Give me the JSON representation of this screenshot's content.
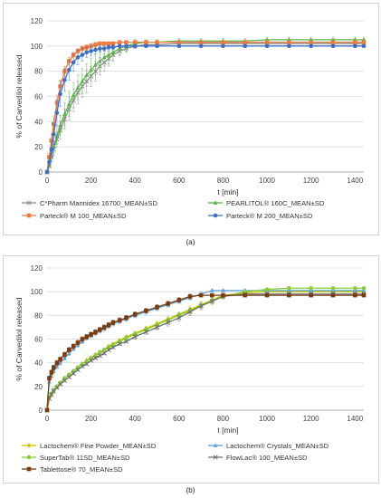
{
  "chart_data": [
    {
      "type": "line",
      "caption": "(a)",
      "title": "",
      "xlabel": "t [min]",
      "ylabel": "% of Carvedilol released",
      "xlim": [
        0,
        1440
      ],
      "ylim": [
        0,
        120
      ],
      "xticks": [
        0,
        200,
        400,
        600,
        800,
        1000,
        1200,
        1400
      ],
      "yticks": [
        0,
        20,
        40,
        60,
        80,
        100,
        120
      ],
      "grid": "horizontal",
      "legend": "bottom",
      "series": [
        {
          "name": "C*Pharm Mannidex 16700_MEAN±SD",
          "color": "#8c8c8c",
          "marker": "x",
          "x": [
            0,
            10,
            20,
            30,
            45,
            60,
            80,
            100,
            120,
            140,
            160,
            180,
            200,
            220,
            240,
            260,
            280,
            300,
            330,
            360,
            400,
            450,
            500,
            600,
            700,
            800,
            900,
            1000,
            1100,
            1200,
            1300,
            1400,
            1440
          ],
          "y": [
            0,
            5,
            12,
            18,
            26,
            33,
            42,
            50,
            57,
            63,
            68,
            72,
            76,
            80,
            84,
            87,
            90,
            93,
            96,
            98,
            100,
            101,
            101,
            102,
            102,
            102,
            102,
            102,
            102,
            102,
            102,
            102,
            102
          ],
          "err": [
            0,
            2,
            4,
            5,
            6,
            7,
            8,
            9,
            9,
            9,
            9,
            9,
            8,
            8,
            7,
            7,
            6,
            5,
            4,
            3,
            2,
            1,
            1,
            1,
            1,
            1,
            1,
            1,
            1,
            1,
            1,
            1,
            1
          ]
        },
        {
          "name": "PEARLITOL® 160C_MEAN±SD",
          "color": "#5ab04a",
          "marker": "triangle",
          "x": [
            0,
            10,
            20,
            30,
            45,
            60,
            80,
            100,
            120,
            140,
            160,
            180,
            200,
            220,
            240,
            260,
            280,
            300,
            330,
            360,
            400,
            450,
            500,
            600,
            700,
            800,
            900,
            1000,
            1100,
            1200,
            1300,
            1400,
            1440
          ],
          "y": [
            0,
            6,
            13,
            20,
            29,
            37,
            46,
            54,
            61,
            67,
            72,
            77,
            81,
            85,
            88,
            91,
            93,
            95,
            98,
            100,
            102,
            103,
            103,
            104,
            104,
            104,
            104,
            105,
            105,
            105,
            105,
            105,
            105
          ],
          "err": [
            0,
            2,
            4,
            5,
            7,
            8,
            9,
            10,
            10,
            10,
            10,
            9,
            9,
            8,
            8,
            7,
            7,
            6,
            5,
            4,
            3,
            2,
            2,
            2,
            2,
            2,
            2,
            2,
            2,
            2,
            2,
            2,
            2
          ]
        },
        {
          "name": "Parteck® M 100_MEAN±SD",
          "color": "#f07b3f",
          "marker": "square",
          "x": [
            0,
            10,
            20,
            30,
            45,
            60,
            80,
            100,
            120,
            140,
            160,
            180,
            200,
            220,
            240,
            260,
            280,
            300,
            330,
            360,
            400,
            450,
            500,
            600,
            700,
            800,
            900,
            1000,
            1100,
            1200,
            1300,
            1400,
            1440
          ],
          "y": [
            0,
            12,
            25,
            38,
            55,
            68,
            80,
            88,
            93,
            96,
            98,
            99,
            100,
            101,
            102,
            102,
            102,
            102,
            103,
            103,
            103,
            103,
            103,
            103,
            103,
            103,
            103,
            103,
            103,
            103,
            103,
            103,
            103
          ],
          "err": [
            0,
            3,
            5,
            6,
            6,
            5,
            4,
            3,
            2,
            2,
            2,
            2,
            2,
            2,
            1,
            1,
            1,
            1,
            1,
            1,
            1,
            1,
            1,
            1,
            1,
            1,
            1,
            1,
            1,
            1,
            1,
            1,
            1
          ]
        },
        {
          "name": "Parteck® M 200_MEAN±SD",
          "color": "#3f6fc4",
          "marker": "circle",
          "x": [
            0,
            10,
            20,
            30,
            45,
            60,
            80,
            100,
            120,
            140,
            160,
            180,
            200,
            220,
            240,
            260,
            280,
            300,
            330,
            360,
            400,
            450,
            500,
            600,
            700,
            800,
            900,
            1000,
            1100,
            1200,
            1300,
            1400,
            1440
          ],
          "y": [
            0,
            8,
            18,
            30,
            47,
            62,
            73,
            81,
            87,
            91,
            93,
            95,
            96,
            97,
            98,
            98,
            99,
            99,
            100,
            100,
            100,
            100,
            100,
            100,
            100,
            100,
            100,
            100,
            100,
            100,
            100,
            100,
            100
          ],
          "err": [
            0,
            3,
            6,
            8,
            10,
            10,
            9,
            8,
            7,
            6,
            5,
            4,
            4,
            3,
            3,
            2,
            2,
            2,
            1,
            1,
            1,
            1,
            1,
            1,
            1,
            1,
            1,
            1,
            1,
            1,
            1,
            1,
            1
          ]
        }
      ]
    },
    {
      "type": "line",
      "caption": "(b)",
      "title": "",
      "xlabel": "t [min]",
      "ylabel": "% of Carvedilol released",
      "xlim": [
        0,
        1440
      ],
      "ylim": [
        0,
        120
      ],
      "xticks": [
        0,
        200,
        400,
        600,
        800,
        1000,
        1200,
        1400
      ],
      "yticks": [
        0,
        20,
        40,
        60,
        80,
        100,
        120
      ],
      "grid": "horizontal",
      "legend": "bottom",
      "series": [
        {
          "name": "Lactochem® Fine Powder_MEAN±SD",
          "color": "#c8c800",
          "marker": "diamond",
          "x": [
            0,
            10,
            20,
            30,
            45,
            60,
            80,
            100,
            120,
            140,
            160,
            180,
            200,
            220,
            240,
            260,
            280,
            300,
            330,
            360,
            400,
            450,
            500,
            550,
            600,
            650,
            700,
            750,
            800,
            900,
            1000,
            1100,
            1200,
            1300,
            1400,
            1440
          ],
          "y": [
            0,
            11,
            14,
            17,
            20,
            23,
            27,
            30,
            33,
            36,
            39,
            42,
            44,
            47,
            49,
            51,
            54,
            56,
            59,
            62,
            65,
            69,
            73,
            77,
            81,
            85,
            89,
            93,
            97,
            99,
            100,
            100,
            100,
            100,
            100,
            100
          ],
          "err": [
            0,
            1,
            1,
            1,
            1,
            1,
            1,
            1,
            1,
            1,
            1,
            1,
            1,
            1,
            1,
            1,
            1,
            1,
            1,
            1,
            1,
            2,
            2,
            2,
            2,
            3,
            3,
            3,
            2,
            1,
            1,
            1,
            1,
            1,
            1,
            1
          ]
        },
        {
          "name": "Lactochem® Crystals_MEAN±SD",
          "color": "#5aa0d8",
          "marker": "triangle",
          "x": [
            0,
            10,
            20,
            30,
            45,
            60,
            80,
            100,
            120,
            140,
            160,
            180,
            200,
            220,
            240,
            260,
            280,
            300,
            330,
            360,
            400,
            450,
            500,
            550,
            600,
            650,
            700,
            750,
            800,
            900,
            1000,
            1100,
            1200,
            1300,
            1400,
            1440
          ],
          "y": [
            0,
            24,
            29,
            33,
            37,
            40,
            44,
            48,
            52,
            55,
            58,
            61,
            63,
            65,
            67,
            69,
            71,
            73,
            75,
            77,
            80,
            83,
            86,
            89,
            92,
            95,
            98,
            101,
            101,
            101,
            101,
            101,
            101,
            101,
            101,
            101
          ],
          "err": [
            0,
            2,
            2,
            2,
            2,
            2,
            2,
            2,
            2,
            2,
            2,
            2,
            2,
            2,
            2,
            2,
            2,
            2,
            2,
            2,
            2,
            2,
            2,
            2,
            2,
            2,
            2,
            1,
            1,
            1,
            1,
            1,
            1,
            1,
            1,
            1
          ]
        },
        {
          "name": "SuperTab® 11SD_MEAN±SD",
          "color": "#8ccc3c",
          "marker": "circle",
          "x": [
            0,
            10,
            20,
            30,
            45,
            60,
            80,
            100,
            120,
            140,
            160,
            180,
            200,
            220,
            240,
            260,
            280,
            300,
            330,
            360,
            400,
            450,
            500,
            550,
            600,
            650,
            700,
            750,
            800,
            900,
            1000,
            1100,
            1200,
            1300,
            1400,
            1440
          ],
          "y": [
            0,
            11,
            14,
            17,
            20,
            23,
            27,
            30,
            33,
            36,
            39,
            41,
            44,
            46,
            49,
            51,
            53,
            55,
            58,
            61,
            64,
            68,
            72,
            76,
            80,
            84,
            88,
            92,
            96,
            100,
            102,
            103,
            103,
            103,
            103,
            103
          ],
          "err": [
            0,
            1,
            1,
            1,
            1,
            1,
            1,
            1,
            1,
            1,
            1,
            1,
            1,
            1,
            1,
            1,
            1,
            1,
            1,
            1,
            2,
            2,
            2,
            2,
            2,
            3,
            3,
            3,
            2,
            2,
            1,
            1,
            1,
            1,
            1,
            1
          ]
        },
        {
          "name": "FlowLac® 100_MEAN±SD",
          "color": "#707070",
          "marker": "x",
          "x": [
            0,
            10,
            20,
            30,
            45,
            60,
            80,
            100,
            120,
            140,
            160,
            180,
            200,
            220,
            240,
            260,
            280,
            300,
            330,
            360,
            400,
            450,
            500,
            550,
            600,
            650,
            700,
            750,
            800,
            900,
            1000,
            1100,
            1200,
            1300,
            1400,
            1440
          ],
          "y": [
            0,
            10,
            13,
            16,
            19,
            22,
            25,
            28,
            31,
            34,
            37,
            39,
            42,
            44,
            46,
            48,
            51,
            53,
            56,
            58,
            62,
            66,
            70,
            74,
            78,
            83,
            88,
            92,
            96,
            98,
            98,
            98,
            98,
            98,
            98,
            98
          ],
          "err": [
            0,
            1,
            1,
            1,
            1,
            1,
            1,
            1,
            1,
            1,
            1,
            1,
            1,
            1,
            1,
            1,
            1,
            1,
            1,
            1,
            2,
            2,
            2,
            3,
            3,
            3,
            3,
            2,
            2,
            1,
            1,
            1,
            1,
            1,
            1,
            1
          ]
        },
        {
          "name": "Tablettose® 70_MEAN±SD",
          "color": "#7a3c10",
          "marker": "square",
          "x": [
            0,
            10,
            20,
            30,
            45,
            60,
            80,
            100,
            120,
            140,
            160,
            180,
            200,
            220,
            240,
            260,
            280,
            300,
            330,
            360,
            400,
            450,
            500,
            550,
            600,
            650,
            700,
            750,
            800,
            900,
            1000,
            1100,
            1200,
            1300,
            1400,
            1440
          ],
          "y": [
            0,
            27,
            32,
            36,
            40,
            43,
            47,
            51,
            54,
            57,
            60,
            62,
            64,
            66,
            68,
            70,
            72,
            74,
            76,
            78,
            81,
            84,
            87,
            90,
            93,
            96,
            97,
            97,
            97,
            97,
            97,
            97,
            97,
            97,
            97,
            97
          ],
          "err": [
            0,
            2,
            2,
            2,
            2,
            2,
            2,
            2,
            2,
            2,
            2,
            2,
            2,
            2,
            2,
            2,
            2,
            2,
            2,
            2,
            2,
            2,
            2,
            2,
            2,
            2,
            1,
            1,
            1,
            1,
            1,
            1,
            1,
            1,
            1,
            1
          ]
        }
      ]
    }
  ]
}
